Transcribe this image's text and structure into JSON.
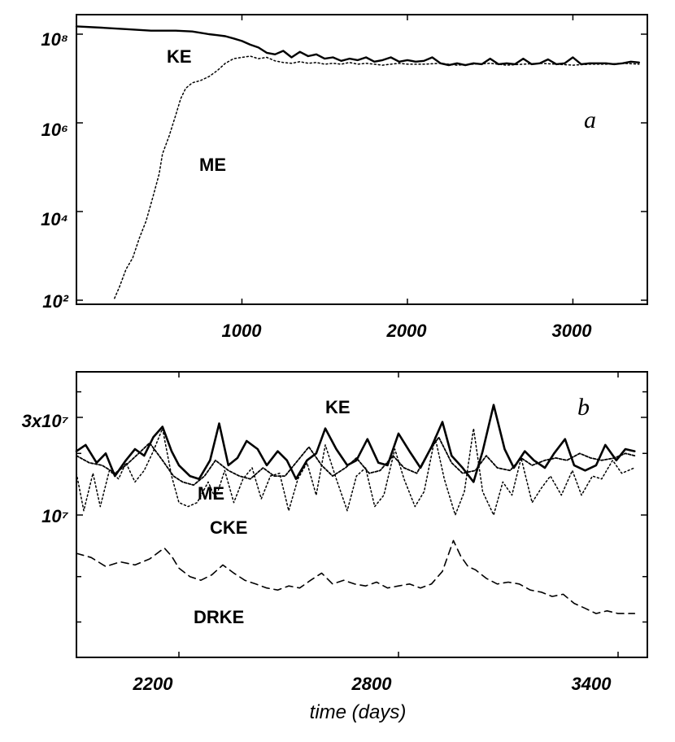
{
  "chart_data": [
    {
      "type": "line",
      "panel_label": "a",
      "x_ticks": [
        "1000",
        "2000",
        "3000"
      ],
      "x_tick_values": [
        1000,
        2000,
        3000
      ],
      "xlim": [
        0,
        3450
      ],
      "y_scale": "log",
      "y_ticks": [
        "10²",
        "10⁴",
        "10⁶",
        "10⁸"
      ],
      "y_tick_values": [
        100,
        10000,
        1000000,
        100000000
      ],
      "ylim": [
        100,
        200000000
      ],
      "series": [
        {
          "name": "KE",
          "style": "solid",
          "x": [
            0,
            150,
            300,
            450,
            600,
            700,
            800,
            850,
            900,
            950,
            1000,
            1050,
            1100,
            1150,
            1200,
            1250,
            1300,
            1350,
            1400,
            1450,
            1500,
            1550,
            1600,
            1650,
            1700,
            1750,
            1800,
            1850,
            1900,
            1950,
            2000,
            2050,
            2100,
            2150,
            2200,
            2250,
            2300,
            2350,
            2400,
            2450,
            2500,
            2550,
            2600,
            2650,
            2700,
            2750,
            2800,
            2850,
            2900,
            2950,
            3000,
            3050,
            3100,
            3150,
            3200,
            3250,
            3300,
            3350,
            3400
          ],
          "y": [
            150000000,
            140000000,
            130000000,
            120000000,
            120000000,
            115000000,
            100000000,
            95000000,
            90000000,
            80000000,
            70000000,
            58000000,
            50000000,
            38000000,
            35000000,
            42000000,
            30000000,
            40000000,
            32000000,
            35000000,
            28000000,
            30000000,
            25000000,
            28000000,
            26000000,
            30000000,
            24000000,
            26000000,
            30000000,
            24000000,
            26000000,
            24000000,
            25000000,
            30000000,
            22000000,
            20000000,
            22000000,
            20000000,
            22000000,
            21000000,
            28000000,
            21000000,
            22000000,
            21000000,
            28000000,
            21000000,
            22000000,
            27000000,
            21000000,
            22000000,
            30000000,
            21000000,
            22000000,
            22000000,
            22000000,
            21000000,
            22000000,
            24000000,
            23000000
          ]
        },
        {
          "name": "ME",
          "style": "dotted",
          "x": [
            230,
            260,
            300,
            340,
            380,
            420,
            460,
            500,
            520,
            560,
            600,
            630,
            660,
            700,
            750,
            800,
            850,
            900,
            950,
            1000,
            1050,
            1100,
            1150,
            1200,
            1250,
            1300,
            1350,
            1400,
            1450,
            1500,
            1550,
            1600,
            1650,
            1700,
            1750,
            1800,
            1850,
            1900,
            1950,
            2000,
            2100,
            2200,
            2300,
            2400,
            2500,
            2600,
            2700,
            2800,
            2900,
            3000,
            3100,
            3200,
            3300,
            3400
          ],
          "y": [
            110,
            200,
            500,
            900,
            2500,
            6000,
            20000,
            70000,
            200000,
            500000,
            1500000,
            3500000,
            6000000,
            8000000,
            9000000,
            11000000,
            15000000,
            22000000,
            28000000,
            30000000,
            32000000,
            28000000,
            30000000,
            25000000,
            23000000,
            22000000,
            24000000,
            22000000,
            23000000,
            21000000,
            22000000,
            21000000,
            23000000,
            21000000,
            22000000,
            21000000,
            20000000,
            21000000,
            22000000,
            21000000,
            21000000,
            22000000,
            20000000,
            21000000,
            22000000,
            20000000,
            21000000,
            22000000,
            21000000,
            20000000,
            21000000,
            21000000,
            22000000,
            21000000
          ]
        }
      ]
    },
    {
      "type": "line",
      "panel_label": "b",
      "xlabel": "time (days)",
      "x_ticks": [
        "2200",
        "2800",
        "3400"
      ],
      "x_tick_values": [
        2200,
        2800,
        3400
      ],
      "xlim": [
        1920,
        3480
      ],
      "y_scale": "log",
      "y_ticks": [
        "10⁷",
        "3x10⁷"
      ],
      "y_tick_values": [
        10000000,
        30000000
      ],
      "ylim": [
        2000000,
        50000000
      ],
      "series": [
        {
          "name": "KE",
          "style": "solid",
          "x": [
            1920,
            1945,
            1975,
            2000,
            2025,
            2055,
            2080,
            2105,
            2130,
            2155,
            2180,
            2200,
            2230,
            2255,
            2285,
            2310,
            2335,
            2360,
            2385,
            2415,
            2440,
            2470,
            2495,
            2520,
            2550,
            2575,
            2600,
            2630,
            2660,
            2685,
            2715,
            2745,
            2770,
            2800,
            2830,
            2860,
            2890,
            2920,
            2945,
            2975,
            3005,
            3030,
            3060,
            3090,
            3115,
            3145,
            3170,
            3200,
            3225,
            3255,
            3280,
            3310,
            3340,
            3365,
            3395,
            3420,
            3445
          ],
          "y": [
            20500000,
            22000000,
            18000000,
            20000000,
            15500000,
            18500000,
            21000000,
            19500000,
            24000000,
            27000000,
            20500000,
            17500000,
            15500000,
            15000000,
            18500000,
            28000000,
            17500000,
            19000000,
            23000000,
            21000000,
            17500000,
            20500000,
            18500000,
            15000000,
            18500000,
            20000000,
            26500000,
            21000000,
            17500000,
            18500000,
            23500000,
            18000000,
            17500000,
            25000000,
            20500000,
            17000000,
            21500000,
            28500000,
            19500000,
            17000000,
            14500000,
            20500000,
            34500000,
            21000000,
            17000000,
            20500000,
            18500000,
            17000000,
            20000000,
            23500000,
            17500000,
            16500000,
            17500000,
            22000000,
            18500000,
            21000000,
            20500000
          ]
        },
        {
          "name": "ME",
          "style": "dotted",
          "x": [
            1920,
            1955,
            1990,
            2025,
            2055,
            2090,
            2120,
            2155,
            2185,
            2210,
            2240,
            2270,
            2300,
            2335,
            2365,
            2395,
            2430,
            2460,
            2490,
            2525,
            2555,
            2590,
            2620,
            2655,
            2685,
            2720,
            2750,
            2785,
            2815,
            2850,
            2880,
            2910,
            2945,
            2975,
            3010,
            3040,
            3070,
            3105,
            3135,
            3165,
            3200,
            3230,
            3260,
            3295,
            3325,
            3355,
            3390,
            3420,
            3445
          ],
          "y": [
            19500000,
            18000000,
            17500000,
            16000000,
            17500000,
            20000000,
            22500000,
            18500000,
            15500000,
            14500000,
            14000000,
            15500000,
            18500000,
            16500000,
            15500000,
            15000000,
            17000000,
            15500000,
            15500000,
            18500000,
            21500000,
            17500000,
            15500000,
            17000000,
            19000000,
            16000000,
            16500000,
            19500000,
            17000000,
            16000000,
            20000000,
            24000000,
            18000000,
            16000000,
            16500000,
            19500000,
            17000000,
            16500000,
            19000000,
            17500000,
            18500000,
            19000000,
            18500000,
            20000000,
            19000000,
            18500000,
            19000000,
            20000000,
            19500000
          ]
        },
        {
          "name": "CKE",
          "style": "dotted",
          "x": [
            1920,
            1940,
            1965,
            1985,
            2010,
            2035,
            2055,
            2080,
            2105,
            2130,
            2155,
            2180,
            2200,
            2225,
            2250,
            2280,
            2300,
            2325,
            2350,
            2375,
            2400,
            2425,
            2450,
            2475,
            2500,
            2525,
            2550,
            2575,
            2600,
            2630,
            2660,
            2685,
            2710,
            2735,
            2760,
            2790,
            2815,
            2845,
            2870,
            2900,
            2925,
            2955,
            2980,
            3005,
            3030,
            3060,
            3085,
            3110,
            3135,
            3165,
            3190,
            3215,
            3245,
            3275,
            3300,
            3330,
            3355,
            3385,
            3410,
            3445
          ],
          "y": [
            16000000,
            10500000,
            16000000,
            11000000,
            16500000,
            15000000,
            18000000,
            14500000,
            16500000,
            20500000,
            26500000,
            15500000,
            11500000,
            11000000,
            11500000,
            14500000,
            12000000,
            16500000,
            11500000,
            15000000,
            17000000,
            12000000,
            15500000,
            16000000,
            10500000,
            15000000,
            18000000,
            12500000,
            22000000,
            15000000,
            10500000,
            15500000,
            17000000,
            11000000,
            12500000,
            21000000,
            15000000,
            11000000,
            13000000,
            24000000,
            15000000,
            10000000,
            13000000,
            26500000,
            13000000,
            10000000,
            14500000,
            12500000,
            19000000,
            11500000,
            13500000,
            15500000,
            12500000,
            16500000,
            12500000,
            15500000,
            15000000,
            18500000,
            16000000,
            17000000
          ]
        },
        {
          "name": "DRKE",
          "style": "dashed",
          "x": [
            1920,
            1960,
            2000,
            2040,
            2080,
            2120,
            2160,
            2180,
            2200,
            2230,
            2260,
            2290,
            2320,
            2350,
            2380,
            2410,
            2440,
            2470,
            2500,
            2530,
            2560,
            2590,
            2620,
            2650,
            2680,
            2710,
            2740,
            2770,
            2800,
            2830,
            2860,
            2890,
            2920,
            2950,
            2970,
            2990,
            3010,
            3040,
            3070,
            3100,
            3130,
            3160,
            3190,
            3220,
            3250,
            3280,
            3310,
            3340,
            3370,
            3400,
            3445
          ],
          "y": [
            6500000,
            6200000,
            5600000,
            5900000,
            5700000,
            6100000,
            6900000,
            6300000,
            5500000,
            5000000,
            4800000,
            5100000,
            5700000,
            5200000,
            4800000,
            4600000,
            4400000,
            4300000,
            4500000,
            4400000,
            4800000,
            5200000,
            4600000,
            4800000,
            4600000,
            4500000,
            4700000,
            4400000,
            4500000,
            4600000,
            4400000,
            4600000,
            5300000,
            7500000,
            6300000,
            5600000,
            5400000,
            4900000,
            4600000,
            4700000,
            4600000,
            4300000,
            4200000,
            4000000,
            4100000,
            3700000,
            3500000,
            3300000,
            3400000,
            3300000,
            3300000
          ]
        }
      ]
    }
  ]
}
